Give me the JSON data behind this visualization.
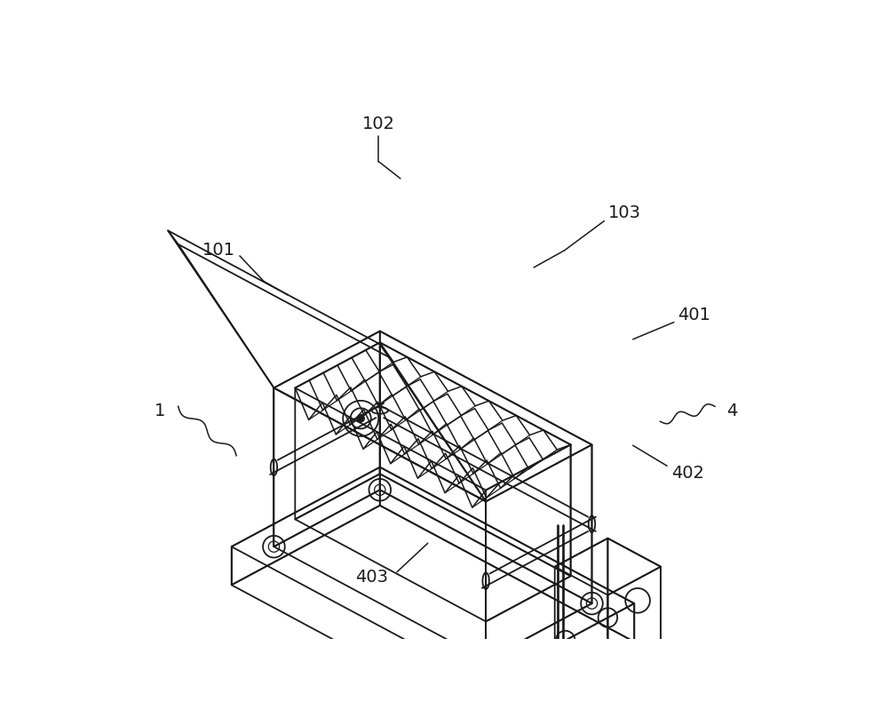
{
  "bg_color": "#ffffff",
  "line_color": "#1a1a1a",
  "line_width": 1.3,
  "fig_width": 10.0,
  "fig_height": 8.08,
  "dpi": 100
}
